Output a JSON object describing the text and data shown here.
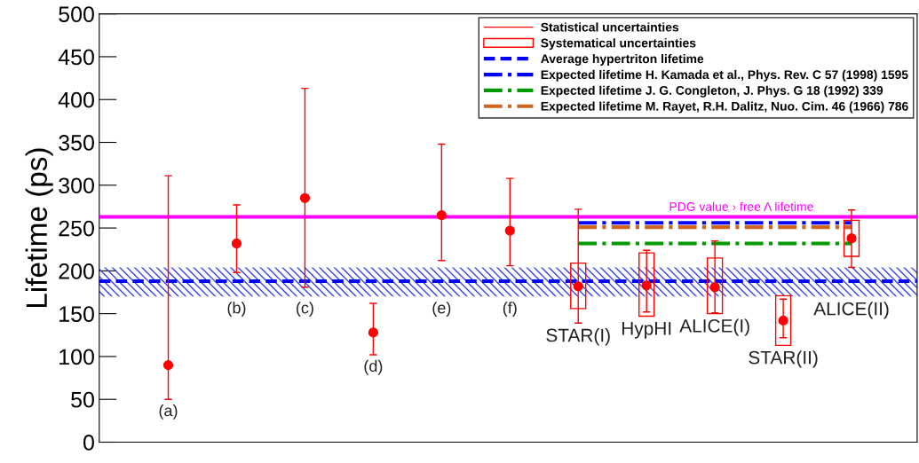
{
  "chart_data": {
    "type": "scatter",
    "ylabel": "Lifetime (ps)",
    "categories": [
      "(a)",
      "(b)",
      "(c)",
      "(d)",
      "(e)",
      "(f)",
      "STAR(I)",
      "HypHI",
      "ALICE(I)",
      "STAR(II)",
      "ALICE(II)"
    ],
    "ylim": [
      0,
      500
    ],
    "yticks": [
      0,
      50,
      100,
      150,
      200,
      250,
      300,
      350,
      400,
      450,
      500
    ],
    "tick_labels": "y",
    "grid": false,
    "legend": "top right",
    "series": [
      {
        "name": "Statistical uncertainties",
        "marker": "circle",
        "color": "#ff0000",
        "values": [
          90,
          232,
          285,
          128,
          265,
          247,
          182,
          183,
          181,
          142,
          238
        ],
        "errors": [
          [
            50,
            311
          ],
          [
            198,
            277
          ],
          [
            181,
            413
          ],
          [
            102,
            162
          ],
          [
            212,
            348
          ],
          [
            206,
            308
          ],
          [
            139,
            272
          ],
          [
            152,
            224
          ],
          [
            151,
            235
          ],
          [
            122,
            167
          ],
          [
            204,
            271
          ]
        ]
      },
      {
        "name": "Systematical uncertainties",
        "type": "bar",
        "color": "#ff0000",
        "base": [
          null,
          null,
          null,
          null,
          null,
          null,
          156,
          147,
          150,
          113,
          217
        ],
        "values": [
          null,
          null,
          null,
          null,
          null,
          null,
          53,
          74,
          65,
          58,
          42
        ]
      },
      {
        "name": "Expected lifetime H. Kamada et al., Phys. Rev. C 57 (1998) 1595",
        "type": "line",
        "color": "#0000ff",
        "line_style": "dashdot",
        "values": [
          null,
          null,
          null,
          null,
          null,
          null,
          256,
          256,
          256,
          256,
          256
        ]
      },
      {
        "name": "Expected lifetime J. G. Congleton, J. Phys. G 18 (1992) 339",
        "type": "line",
        "color": "#009900",
        "line_style": "dashdot",
        "values": [
          null,
          null,
          null,
          null,
          null,
          null,
          232,
          232,
          232,
          232,
          232
        ]
      },
      {
        "name": "Expected lifetime M. Rayet, R.H. Dalitz, Nuo. Cim. 46 (1966) 786",
        "type": "line",
        "color": "#cc6622",
        "line_style": "dashdot",
        "values": [
          null,
          null,
          null,
          null,
          null,
          null,
          251,
          251,
          251,
          251,
          251
        ]
      }
    ],
    "ref_lines": [
      {
        "axis": "y",
        "value": 188,
        "label": "Average hypertriton lifetime",
        "color": "#0000ff",
        "line_style": "dashed"
      },
      {
        "axis": "y",
        "value": 263,
        "color": "#ff00ff",
        "line_style": "solid"
      }
    ],
    "bands": [
      {
        "axis": "y",
        "from": 170,
        "to": 204,
        "color": "#3344ee"
      }
    ],
    "annotations": [
      {
        "text": "PDG value › free Λ lifetime",
        "y": 263
      }
    ]
  }
}
